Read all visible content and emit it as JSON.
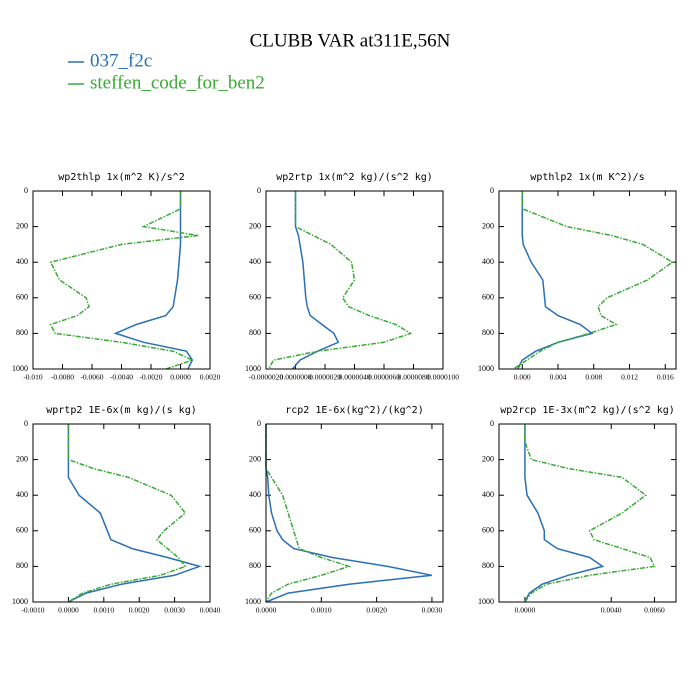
{
  "title": "CLUBB VAR at311E,56N",
  "chart_data": [
    {
      "type": "line",
      "title": "wp2thlp  1x(m^2 K)/s^2",
      "y": [
        0,
        100,
        200,
        250,
        300,
        400,
        500,
        600,
        650,
        700,
        750,
        800,
        850,
        900,
        950,
        1000
      ],
      "ylim": [
        1000,
        0
      ],
      "yticks": [
        0,
        200,
        400,
        600,
        800,
        1000
      ],
      "xlim": [
        -0.01,
        0.002
      ],
      "xticks": [
        {
          "value": -0.01,
          "label": "-0.010"
        },
        {
          "value": -0.008,
          "label": "-0.0080"
        },
        {
          "value": -0.006,
          "label": "-0.0060"
        },
        {
          "value": -0.004,
          "label": "-0.0040"
        },
        {
          "value": -0.002,
          "label": "-0.0020"
        },
        {
          "value": 0,
          "label": "0.0000"
        },
        {
          "value": 0.002,
          "label": "0.0020"
        }
      ],
      "series": [
        {
          "name": "037_f2c",
          "color": "#2a6fb5",
          "linestyle": "solid",
          "values": [
            0,
            0,
            0,
            0,
            0,
            -0.0001,
            -0.0002,
            -0.0004,
            -0.0005,
            -0.001,
            -0.003,
            -0.0044,
            -0.0025,
            0.0004,
            0.0008,
            0.0005
          ]
        },
        {
          "name": "steffen_code_for_ben2",
          "color": "#3aaa35",
          "linestyle": "dashed",
          "values": [
            0,
            0,
            -0.0025,
            0.0012,
            -0.004,
            -0.0088,
            -0.0082,
            -0.0064,
            -0.0062,
            -0.007,
            -0.0088,
            -0.0085,
            -0.004,
            -0.0005,
            0.0008,
            -0.001
          ]
        }
      ]
    },
    {
      "type": "line",
      "title": "wp2rtp  1x(m^2 kg)/(s^2 kg)",
      "y": [
        0,
        100,
        200,
        250,
        300,
        400,
        500,
        600,
        650,
        700,
        750,
        800,
        850,
        900,
        950,
        1000
      ],
      "ylim": [
        1000,
        0
      ],
      "yticks": [
        0,
        200,
        400,
        600,
        800,
        1000
      ],
      "xlim": [
        -2e-06,
        1e-05
      ],
      "xticks": [
        {
          "value": -2e-06,
          "label": "-0.0000020"
        },
        {
          "value": 0,
          "label": "0.0000000"
        },
        {
          "value": 2e-06,
          "label": "0.0000020"
        },
        {
          "value": 4e-06,
          "label": "0.0000040"
        },
        {
          "value": 6e-06,
          "label": "0.0000060"
        },
        {
          "value": 8e-06,
          "label": "0.0000080"
        },
        {
          "value": 1e-05,
          "label": "0.0000100"
        }
      ],
      "series": [
        {
          "name": "037_f2c",
          "color": "#2a6fb5",
          "linestyle": "solid",
          "values": [
            0,
            0,
            0,
            2e-07,
            3e-07,
            5e-07,
            6e-07,
            7e-07,
            8e-07,
            1e-06,
            1.8e-06,
            2.6e-06,
            2.9e-06,
            1.5e-06,
            3e-07,
            -2e-07
          ]
        },
        {
          "name": "steffen_code_for_ben2",
          "color": "#3aaa35",
          "linestyle": "dashed",
          "values": [
            0,
            0,
            0,
            1.2e-06,
            2.4e-06,
            3.8e-06,
            4e-06,
            3.2e-06,
            3.6e-06,
            5e-06,
            6.8e-06,
            7.8e-06,
            6e-06,
            1.5e-06,
            -1.5e-06,
            -1.8e-06
          ]
        }
      ]
    },
    {
      "type": "line",
      "title": "wpthlp2  1x(m K^2)/s",
      "y": [
        0,
        100,
        200,
        250,
        300,
        400,
        500,
        600,
        650,
        700,
        750,
        800,
        850,
        900,
        950,
        1000
      ],
      "ylim": [
        1000,
        0
      ],
      "yticks": [
        0,
        200,
        400,
        600,
        800,
        1000
      ],
      "xlim": [
        -0.0026,
        0.0172
      ],
      "xticks": [
        {
          "value": 0,
          "label": "0.000"
        },
        0.004,
        0.008,
        0.012,
        0.016
      ],
      "series": [
        {
          "name": "037_f2c",
          "color": "#2a6fb5",
          "linestyle": "solid",
          "values": [
            0,
            0,
            0,
            0,
            0.0001,
            0.001,
            0.0023,
            0.0025,
            0.0026,
            0.004,
            0.0065,
            0.0078,
            0.004,
            0.0015,
            0,
            -0.0005
          ]
        },
        {
          "name": "steffen_code_for_ben2",
          "color": "#3aaa35",
          "linestyle": "dashed",
          "values": [
            0,
            0,
            0.005,
            0.01,
            0.0135,
            0.0168,
            0.014,
            0.0095,
            0.0085,
            0.0088,
            0.0105,
            0.0075,
            0.004,
            0.002,
            0.0005,
            -0.001
          ]
        }
      ]
    },
    {
      "type": "line",
      "title": "wprtp2  1E-6x(m kg)/(s kg)",
      "y": [
        0,
        100,
        200,
        250,
        300,
        400,
        500,
        600,
        650,
        700,
        750,
        800,
        850,
        900,
        950,
        1000
      ],
      "ylim": [
        1000,
        0
      ],
      "yticks": [
        0,
        200,
        400,
        600,
        800,
        1000
      ],
      "xlim": [
        -0.001,
        0.004
      ],
      "xticks": [
        {
          "value": -0.001,
          "label": "-0.0010"
        },
        {
          "value": 0,
          "label": "0.0000"
        },
        {
          "value": 0.001,
          "label": "0.0010"
        },
        {
          "value": 0.002,
          "label": "0.0020"
        },
        {
          "value": 0.003,
          "label": "0.0030"
        },
        {
          "value": 0.004,
          "label": "0.0040"
        }
      ],
      "series": [
        {
          "name": "037_f2c",
          "color": "#2a6fb5",
          "linestyle": "solid",
          "values": [
            0,
            0,
            0,
            0,
            0,
            0.0003,
            0.0009,
            0.0011,
            0.0012,
            0.0018,
            0.0028,
            0.0037,
            0.003,
            0.0015,
            0.0005,
            0
          ]
        },
        {
          "name": "steffen_code_for_ben2",
          "color": "#3aaa35",
          "linestyle": "dashed",
          "values": [
            0,
            0,
            0,
            0.0007,
            0.0017,
            0.0029,
            0.0033,
            0.0027,
            0.0025,
            0.0028,
            0.0031,
            0.0033,
            0.0026,
            0.0012,
            0.0004,
            0
          ]
        }
      ]
    },
    {
      "type": "line",
      "title": "rcp2  1E-6x(kg^2)/(kg^2)",
      "y": [
        0,
        100,
        200,
        250,
        300,
        400,
        500,
        600,
        650,
        700,
        750,
        800,
        850,
        900,
        950,
        1000
      ],
      "ylim": [
        1000,
        0
      ],
      "yticks": [
        0,
        200,
        400,
        600,
        800,
        1000
      ],
      "xlim": [
        0,
        0.0032
      ],
      "xticks": [
        {
          "value": 0,
          "label": "0.0000"
        },
        {
          "value": 0.001,
          "label": "0.0010"
        },
        {
          "value": 0.002,
          "label": "0.0020"
        },
        {
          "value": 0.003,
          "label": "0.0030"
        }
      ],
      "series": [
        {
          "name": "037_f2c",
          "color": "#2a6fb5",
          "linestyle": "solid",
          "values": [
            0,
            0,
            0,
            0,
            3e-05,
            5e-05,
            0.0001,
            0.0002,
            0.0003,
            0.0005,
            0.0012,
            0.0022,
            0.003,
            0.0015,
            0.0004,
            0
          ]
        },
        {
          "name": "steffen_code_for_ben2",
          "color": "#3aaa35",
          "linestyle": "dashed",
          "values": [
            0,
            0,
            0,
            0,
            0.0001,
            0.0003,
            0.0004,
            0.0005,
            0.00055,
            0.0006,
            0.001,
            0.0015,
            0.001,
            0.0004,
            0.0001,
            0
          ]
        }
      ]
    },
    {
      "type": "line",
      "title": "wp2rcp  1E-3x(m^2 kg)/(s^2 kg)",
      "y": [
        0,
        100,
        200,
        250,
        300,
        400,
        500,
        600,
        650,
        700,
        750,
        800,
        850,
        900,
        950,
        1000
      ],
      "ylim": [
        1000,
        0
      ],
      "yticks": [
        0,
        200,
        400,
        600,
        800,
        1000
      ],
      "xlim": [
        -0.0012,
        0.007
      ],
      "xticks": [
        {
          "value": 0,
          "label": "0.0000"
        },
        {
          "value": 0.004,
          "label": "0.0040"
        },
        {
          "value": 0.006,
          "label": "0.0060"
        }
      ],
      "series": [
        {
          "name": "037_f2c",
          "color": "#2a6fb5",
          "linestyle": "solid",
          "values": [
            0,
            0,
            0,
            0,
            0,
            0.0001,
            0.0006,
            0.0009,
            0.0009,
            0.0015,
            0.003,
            0.0036,
            0.002,
            0.0008,
            0.0002,
            0
          ]
        },
        {
          "name": "steffen_code_for_ben2",
          "color": "#3aaa35",
          "linestyle": "dashed",
          "values": [
            0,
            0,
            0.0003,
            0.002,
            0.0045,
            0.0056,
            0.0045,
            0.003,
            0.0032,
            0.0045,
            0.0058,
            0.006,
            0.003,
            0.001,
            0.0003,
            0
          ]
        }
      ]
    }
  ]
}
